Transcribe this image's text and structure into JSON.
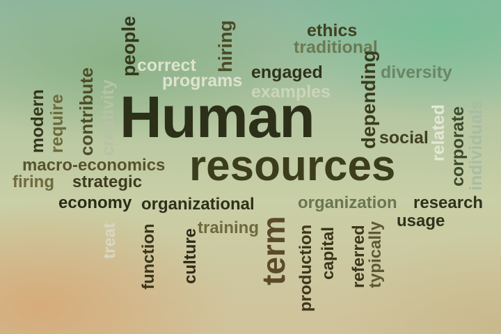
{
  "words": {
    "ethics": "ethics",
    "traditional": "traditional",
    "people": "people",
    "hiring": "hiring",
    "correct": "correct",
    "programs": "programs",
    "engaged": "engaged",
    "examples": "examples",
    "depending": "depending",
    "diversity": "diversity",
    "contribute": "contribute",
    "creativity": "creativity",
    "modern": "modern",
    "require": "require",
    "human": "Human",
    "resources": "resources",
    "related": "related",
    "corporate": "corporate",
    "individuals": "individuals",
    "social": "social",
    "macro_economics": "macro-economics",
    "firing": "firing",
    "strategic": "strategic",
    "economy": "economy",
    "organizational": "organizational",
    "organization": "organization",
    "research": "research",
    "usage": "usage",
    "treat": "treat",
    "function": "function",
    "culture": "culture",
    "training": "training",
    "term": "term",
    "production": "production",
    "capital": "capital",
    "referred": "referred",
    "typically": "typically"
  },
  "colors": {
    "dark": "#25281a",
    "olive": "#4a4d25",
    "muted_green": "#6f8a63",
    "faded": "#d6dcc8"
  }
}
